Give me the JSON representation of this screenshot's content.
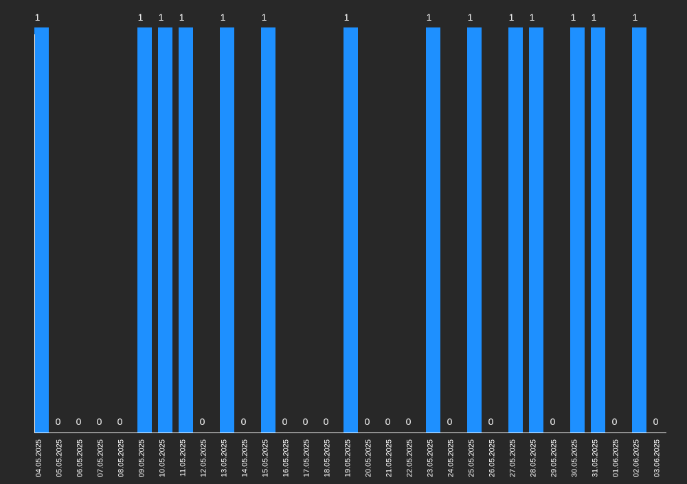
{
  "chart_data": {
    "type": "bar",
    "categories": [
      "04.05.2025",
      "05.05.2025",
      "06.05.2025",
      "07.05.2025",
      "08.05.2025",
      "09.05.2025",
      "10.05.2025",
      "11.05.2025",
      "12.05.2025",
      "13.05.2025",
      "14.05.2025",
      "15.05.2025",
      "16.05.2025",
      "17.05.2025",
      "18.05.2025",
      "19.05.2025",
      "20.05.2025",
      "21.05.2025",
      "22.05.2025",
      "23.05.2025",
      "24.05.2025",
      "25.05.2025",
      "26.05.2025",
      "27.05.2025",
      "28.05.2025",
      "29.05.2025",
      "30.05.2025",
      "31.05.2025",
      "01.06.2025",
      "02.06.2025",
      "03.06.2025"
    ],
    "values": [
      1,
      0,
      0,
      0,
      0,
      1,
      1,
      1,
      0,
      1,
      0,
      1,
      0,
      0,
      0,
      1,
      0,
      0,
      0,
      1,
      0,
      1,
      0,
      1,
      1,
      0,
      1,
      1,
      0,
      1,
      0
    ],
    "ylim": [
      0,
      1
    ],
    "grid": false,
    "colors": {
      "bar": "#1e90ff",
      "background": "#282828",
      "text": "#ffffff",
      "axis": "#ffffff"
    }
  }
}
